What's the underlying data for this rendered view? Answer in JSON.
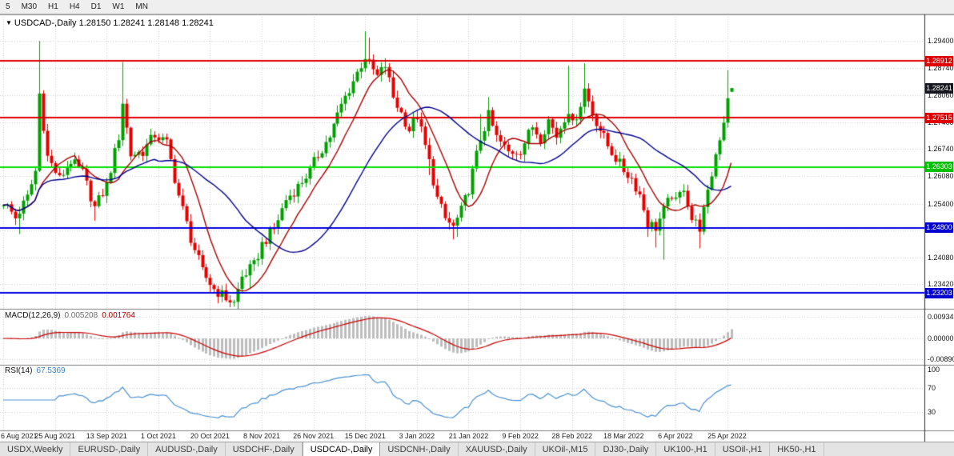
{
  "toolbar": {
    "timeframes": [
      "5",
      "M30",
      "H1",
      "H4",
      "D1",
      "W1",
      "MN"
    ]
  },
  "chart": {
    "symbol": "USDCAD-,Daily",
    "ohlc_text": "1.28150 1.28241 1.28148 1.28241",
    "open": "1.28150",
    "high": "1.28241",
    "low": "1.28148",
    "close": "1.28241"
  },
  "price_axis": {
    "labels": [
      "1.29400",
      "1.28740",
      "1.28060",
      "1.27400",
      "1.26740",
      "1.26080",
      "1.25400",
      "1.24740",
      "1.24080",
      "1.23420"
    ],
    "tags": [
      {
        "label": "1.28912",
        "bg": "#e00000"
      },
      {
        "label": "1.28241",
        "bg": "#16161e"
      },
      {
        "label": "1.27515",
        "bg": "#e00000"
      },
      {
        "label": "1.26303",
        "bg": "#00c000"
      },
      {
        "label": "1.24800",
        "bg": "#0000d0"
      },
      {
        "label": "1.23203",
        "bg": "#0000d0"
      }
    ]
  },
  "macd": {
    "label": "MACD(12,26,9)",
    "value_main": "0.005208",
    "value_signal": "0.001764",
    "axis": [
      "0.00934",
      "0.00000",
      "-0.00890"
    ]
  },
  "rsi": {
    "label": "RSI(14)",
    "value": "67.5369",
    "axis": [
      "100",
      "70",
      "30"
    ]
  },
  "dates": [
    "6 Aug 2021",
    "25 Aug 2021",
    "13 Sep 2021",
    "1 Oct 2021",
    "20 Oct 2021",
    "8 Nov 2021",
    "26 Nov 2021",
    "15 Dec 2021",
    "3 Jan 2022",
    "21 Jan 2022",
    "9 Feb 2022",
    "28 Feb 2022",
    "18 Mar 2022",
    "6 Apr 2022",
    "25 Apr 2022"
  ],
  "tabs": {
    "active_index": 4,
    "items": [
      "USDX,Weekly",
      "EURUSD-,Daily",
      "AUDUSD-,Daily",
      "USDCHF-,Daily",
      "USDCAD-,Daily",
      "USDCNH-,Daily",
      "XAUUSD-,Daily",
      "UKOil-,M15",
      "DJ30-,Daily",
      "UK100-,H1",
      "USOil-,H1",
      "HK50-,H1"
    ]
  },
  "chart_data": {
    "type": "candlestick",
    "instrument": "USDCAD",
    "timeframe": "Daily",
    "bars": 184,
    "last_bar": {
      "o": 1.2815,
      "h": 1.28241,
      "l": 1.28148,
      "c": 1.28241
    },
    "levels": [
      {
        "price": 1.28912,
        "color": "#e00000"
      },
      {
        "price": 1.27515,
        "color": "#e00000"
      },
      {
        "price": 1.26303,
        "color": "#00e000"
      },
      {
        "price": 1.248,
        "color": "#0000e0"
      },
      {
        "price": 1.23203,
        "color": "#0000e0"
      }
    ],
    "moving_averages": [
      {
        "period": 10,
        "color": "#aa0000"
      },
      {
        "period": 30,
        "color": "#000090"
      }
    ],
    "colors": {
      "up": "#00a000",
      "down": "#e80000",
      "macd_hist": "#bdbdbd",
      "macd_signal": "#cc0000",
      "rsi_line": "#4a90d2",
      "grid": "#cfcfcf"
    },
    "price_anchors": [
      [
        0,
        1.2545
      ],
      [
        3,
        1.2505
      ],
      [
        6,
        1.2555
      ],
      [
        8,
        1.262
      ],
      [
        9,
        1.281
      ],
      [
        11,
        1.2655
      ],
      [
        14,
        1.26
      ],
      [
        17,
        1.2645
      ],
      [
        20,
        1.2615
      ],
      [
        23,
        1.253
      ],
      [
        26,
        1.2585
      ],
      [
        29,
        1.2705
      ],
      [
        30,
        1.279
      ],
      [
        32,
        1.266
      ],
      [
        35,
        1.2668
      ],
      [
        38,
        1.271
      ],
      [
        41,
        1.2688
      ],
      [
        44,
        1.256
      ],
      [
        47,
        1.2455
      ],
      [
        50,
        1.2372
      ],
      [
        53,
        1.233
      ],
      [
        56,
        1.2308
      ],
      [
        58,
        1.2295
      ],
      [
        60,
        1.236
      ],
      [
        63,
        1.2388
      ],
      [
        65,
        1.244
      ],
      [
        68,
        1.2478
      ],
      [
        71,
        1.255
      ],
      [
        74,
        1.2582
      ],
      [
        77,
        1.2622
      ],
      [
        79,
        1.266
      ],
      [
        82,
        1.2706
      ],
      [
        85,
        1.2782
      ],
      [
        88,
        1.2842
      ],
      [
        91,
        1.2902
      ],
      [
        92,
        1.2882
      ],
      [
        94,
        1.2852
      ],
      [
        96,
        1.288
      ],
      [
        98,
        1.2802
      ],
      [
        100,
        1.2762
      ],
      [
        102,
        1.2722
      ],
      [
        104,
        1.2756
      ],
      [
        107,
        1.2642
      ],
      [
        109,
        1.2552
      ],
      [
        111,
        1.2502
      ],
      [
        113,
        1.2482
      ],
      [
        115,
        1.2522
      ],
      [
        117,
        1.2576
      ],
      [
        120,
        1.27
      ],
      [
        122,
        1.2756
      ],
      [
        124,
        1.2702
      ],
      [
        127,
        1.2666
      ],
      [
        130,
        1.2672
      ],
      [
        133,
        1.273
      ],
      [
        135,
        1.2702
      ],
      [
        137,
        1.2746
      ],
      [
        139,
        1.2706
      ],
      [
        141,
        1.2752
      ],
      [
        142,
        1.2772
      ],
      [
        143,
        1.2732
      ],
      [
        145,
        1.2786
      ],
      [
        146,
        1.2822
      ],
      [
        148,
        1.2762
      ],
      [
        150,
        1.2722
      ],
      [
        152,
        1.2682
      ],
      [
        156,
        1.2622
      ],
      [
        158,
        1.2602
      ],
      [
        160,
        1.2562
      ],
      [
        162,
        1.2492
      ],
      [
        164,
        1.2482
      ],
      [
        166,
        1.2522
      ],
      [
        168,
        1.2562
      ],
      [
        169,
        1.2542
      ],
      [
        171,
        1.2582
      ],
      [
        173,
        1.2502
      ],
      [
        175,
        1.2482
      ],
      [
        177,
        1.2562
      ],
      [
        179,
        1.2662
      ],
      [
        181,
        1.2745
      ],
      [
        182,
        1.2806
      ],
      [
        183,
        1.28241
      ]
    ],
    "spikes_high": [
      [
        9,
        1.294
      ],
      [
        30,
        1.2888
      ],
      [
        91,
        1.2964
      ],
      [
        92,
        1.2948
      ],
      [
        96,
        1.2898
      ],
      [
        120,
        1.276
      ],
      [
        122,
        1.2802
      ],
      [
        142,
        1.2879
      ],
      [
        146,
        1.2885
      ],
      [
        182,
        1.2868
      ]
    ],
    "spikes_low": [
      [
        4,
        1.2465
      ],
      [
        23,
        1.2498
      ],
      [
        47,
        1.2442
      ],
      [
        52,
        1.232
      ],
      [
        57,
        1.23
      ],
      [
        58,
        1.2288
      ],
      [
        62,
        1.233
      ],
      [
        107,
        1.261
      ],
      [
        113,
        1.2452
      ],
      [
        114,
        1.2458
      ],
      [
        162,
        1.2458
      ],
      [
        164,
        1.2432
      ],
      [
        166,
        1.2402
      ],
      [
        175,
        1.243
      ]
    ]
  }
}
